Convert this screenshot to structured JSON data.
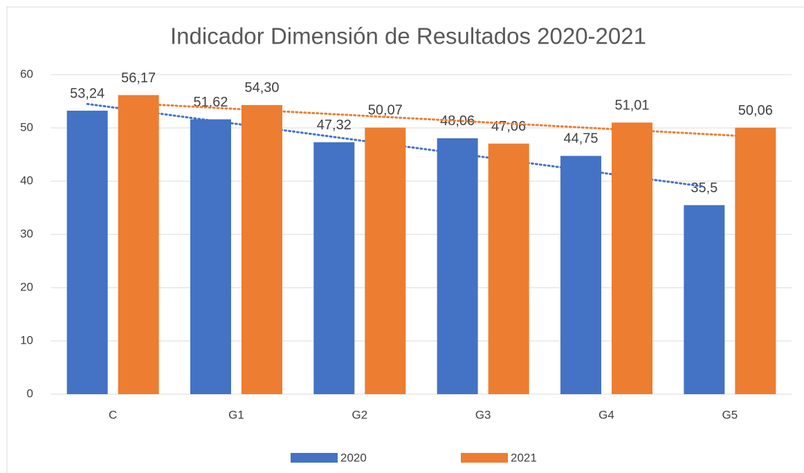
{
  "chart_data": {
    "type": "bar",
    "title": "Indicador Dimensión de Resultados  2020-2021",
    "categories": [
      "C",
      "G1",
      "G2",
      "G3",
      "G4",
      "G5"
    ],
    "series": [
      {
        "name": "2020",
        "color": "#4472c4",
        "values": [
          53.24,
          51.62,
          47.32,
          48.06,
          44.75,
          35.5
        ],
        "value_labels": [
          "53,24",
          "51,62",
          "47,32",
          "48,06",
          "44,75",
          "35,5"
        ]
      },
      {
        "name": "2021",
        "color": "#ed7d31",
        "values": [
          56.17,
          54.3,
          50.07,
          47.06,
          51.01,
          50.06
        ],
        "value_labels": [
          "56,17",
          "54,30",
          "50,07",
          "47,06",
          "51,01",
          "50,06"
        ]
      }
    ],
    "ylim": [
      0,
      60
    ],
    "yticks": [
      0,
      10,
      20,
      30,
      40,
      50,
      60
    ],
    "grid": true,
    "trendline": true,
    "legend": "bottom"
  }
}
